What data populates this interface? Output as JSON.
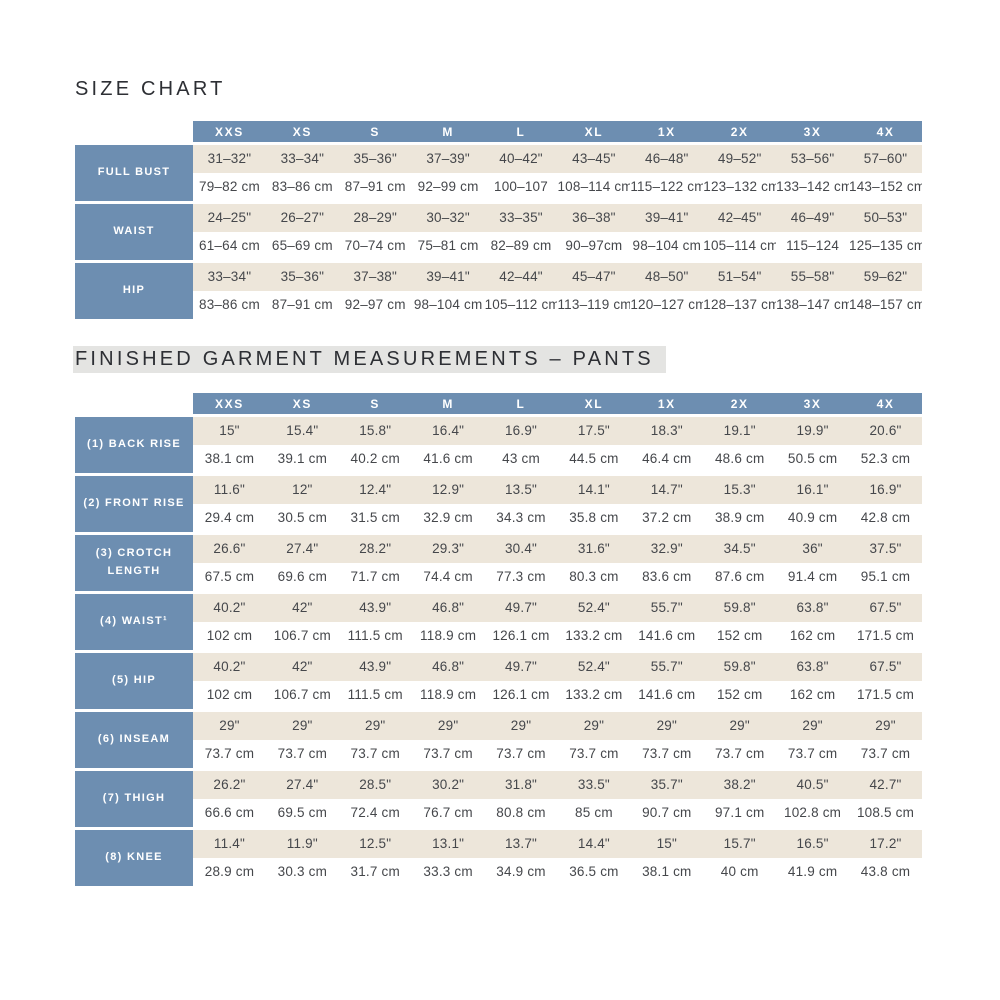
{
  "theme": {
    "accent_blue": "#6D8EB1",
    "row_beige": "#EDE6DA",
    "heading_highlight": "#E4E4E2",
    "text_dark": "#45474B",
    "title_color": "#2D2F34"
  },
  "size_chart": {
    "title": "SIZE CHART",
    "columns": [
      "XXS",
      "XS",
      "S",
      "M",
      "L",
      "XL",
      "1X",
      "2X",
      "3X",
      "4X"
    ],
    "rows": [
      {
        "label": "FULL BUST",
        "in": [
          "31–32\"",
          "33–34\"",
          "35–36\"",
          "37–39\"",
          "40–42\"",
          "43–45\"",
          "46–48\"",
          "49–52\"",
          "53–56\"",
          "57–60\""
        ],
        "cm": [
          "79–82 cm",
          "83–86 cm",
          "87–91 cm",
          "92–99 cm",
          "100–107",
          "108–114 cm",
          "115–122 cm",
          "123–132 cm",
          "133–142 cm",
          "143–152 cm"
        ]
      },
      {
        "label": "WAIST",
        "in": [
          "24–25\"",
          "26–27\"",
          "28–29\"",
          "30–32\"",
          "33–35\"",
          "36–38\"",
          "39–41\"",
          "42–45\"",
          "46–49\"",
          "50–53\""
        ],
        "cm": [
          "61–64 cm",
          "65–69 cm",
          "70–74 cm",
          "75–81 cm",
          "82–89 cm",
          "90–97cm",
          "98–104 cm",
          "105–114 cm",
          "115–124",
          "125–135 cm"
        ]
      },
      {
        "label": "HIP",
        "in": [
          "33–34\"",
          "35–36\"",
          "37–38\"",
          "39–41\"",
          "42–44\"",
          "45–47\"",
          "48–50\"",
          "51–54\"",
          "55–58\"",
          "59–62\""
        ],
        "cm": [
          "83–86 cm",
          "87–91 cm",
          "92–97 cm",
          "98–104 cm",
          "105–112 cm",
          "113–119 cm",
          "120–127 cm",
          "128–137 cm",
          "138–147 cm",
          "148–157 cm"
        ]
      }
    ]
  },
  "garment_chart": {
    "title": "FINISHED GARMENT MEASUREMENTS – PANTS",
    "columns": [
      "XXS",
      "XS",
      "S",
      "M",
      "L",
      "XL",
      "1X",
      "2X",
      "3X",
      "4X"
    ],
    "rows": [
      {
        "label": "(1) BACK RISE",
        "in": [
          "15\"",
          "15.4\"",
          "15.8\"",
          "16.4\"",
          "16.9\"",
          "17.5\"",
          "18.3\"",
          "19.1\"",
          "19.9\"",
          "20.6\""
        ],
        "cm": [
          "38.1 cm",
          "39.1 cm",
          "40.2 cm",
          "41.6 cm",
          "43 cm",
          "44.5 cm",
          "46.4 cm",
          "48.6 cm",
          "50.5 cm",
          "52.3 cm"
        ]
      },
      {
        "label": "(2) FRONT RISE",
        "in": [
          "11.6\"",
          "12\"",
          "12.4\"",
          "12.9\"",
          "13.5\"",
          "14.1\"",
          "14.7\"",
          "15.3\"",
          "16.1\"",
          "16.9\""
        ],
        "cm": [
          "29.4 cm",
          "30.5 cm",
          "31.5 cm",
          "32.9 cm",
          "34.3 cm",
          "35.8 cm",
          "37.2 cm",
          "38.9 cm",
          "40.9 cm",
          "42.8 cm"
        ]
      },
      {
        "label": "(3) CROTCH LENGTH",
        "in": [
          "26.6\"",
          "27.4\"",
          "28.2\"",
          "29.3\"",
          "30.4\"",
          "31.6\"",
          "32.9\"",
          "34.5\"",
          "36\"",
          "37.5\""
        ],
        "cm": [
          "67.5 cm",
          "69.6 cm",
          "71.7 cm",
          "74.4 cm",
          "77.3 cm",
          "80.3 cm",
          "83.6 cm",
          "87.6 cm",
          "91.4 cm",
          "95.1 cm"
        ]
      },
      {
        "label": "(4) WAIST¹",
        "in": [
          "40.2\"",
          "42\"",
          "43.9\"",
          "46.8\"",
          "49.7\"",
          "52.4\"",
          "55.7\"",
          "59.8\"",
          "63.8\"",
          "67.5\""
        ],
        "cm": [
          "102 cm",
          "106.7 cm",
          "111.5 cm",
          "118.9 cm",
          "126.1 cm",
          "133.2 cm",
          "141.6 cm",
          "152 cm",
          "162 cm",
          "171.5 cm"
        ]
      },
      {
        "label": "(5) HIP",
        "in": [
          "40.2\"",
          "42\"",
          "43.9\"",
          "46.8\"",
          "49.7\"",
          "52.4\"",
          "55.7\"",
          "59.8\"",
          "63.8\"",
          "67.5\""
        ],
        "cm": [
          "102 cm",
          "106.7 cm",
          "111.5 cm",
          "118.9 cm",
          "126.1 cm",
          "133.2 cm",
          "141.6 cm",
          "152 cm",
          "162 cm",
          "171.5 cm"
        ]
      },
      {
        "label": "(6) INSEAM",
        "in": [
          "29\"",
          "29\"",
          "29\"",
          "29\"",
          "29\"",
          "29\"",
          "29\"",
          "29\"",
          "29\"",
          "29\""
        ],
        "cm": [
          "73.7 cm",
          "73.7 cm",
          "73.7 cm",
          "73.7 cm",
          "73.7 cm",
          "73.7 cm",
          "73.7 cm",
          "73.7 cm",
          "73.7 cm",
          "73.7 cm"
        ]
      },
      {
        "label": "(7) THIGH",
        "in": [
          "26.2\"",
          "27.4\"",
          "28.5\"",
          "30.2\"",
          "31.8\"",
          "33.5\"",
          "35.7\"",
          "38.2\"",
          "40.5\"",
          "42.7\""
        ],
        "cm": [
          "66.6 cm",
          "69.5 cm",
          "72.4 cm",
          "76.7 cm",
          "80.8 cm",
          "85 cm",
          "90.7 cm",
          "97.1 cm",
          "102.8 cm",
          "108.5 cm"
        ]
      },
      {
        "label": "(8) KNEE",
        "in": [
          "11.4\"",
          "11.9\"",
          "12.5\"",
          "13.1\"",
          "13.7\"",
          "14.4\"",
          "15\"",
          "15.7\"",
          "16.5\"",
          "17.2\""
        ],
        "cm": [
          "28.9 cm",
          "30.3 cm",
          "31.7 cm",
          "33.3 cm",
          "34.9 cm",
          "36.5 cm",
          "38.1 cm",
          "40 cm",
          "41.9 cm",
          "43.8 cm"
        ]
      }
    ]
  }
}
